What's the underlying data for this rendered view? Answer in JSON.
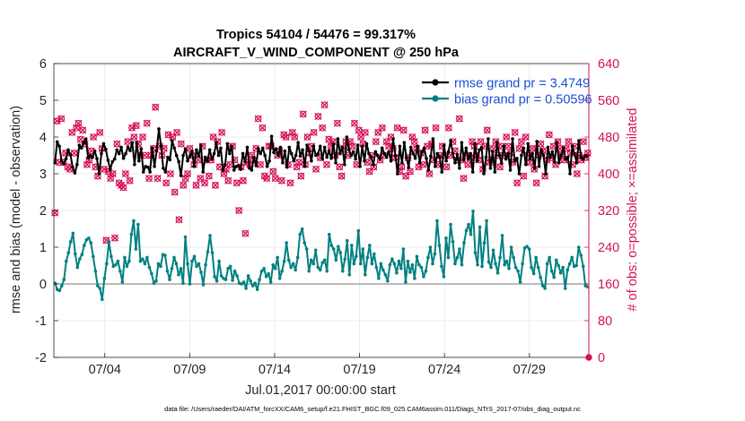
{
  "chart_data": {
    "type": "line",
    "title_line1": "Tropics 54104 / 54476 = 99.317%",
    "title_line2": "AIRCRAFT_V_WIND_COMPONENT @ 250 hPa",
    "xlabel": "Jul.01,2017 00:00:00 start",
    "ylabel_left": "rmse and bias (model - observation)",
    "ylabel_right": "# of obs: o=possible; ×=assimilated",
    "footer": "data file: /Users/raeder/DAI/ATM_forcXX/CAM6_setup/f.e21.FHIST_BGC.f09_025.CAM6assim.011/Diags_NTrS_2017-07/obs_diag_output.nc",
    "xlim": [
      1,
      32.5
    ],
    "ylim_left": [
      -2,
      6
    ],
    "ylim_right": [
      0,
      640
    ],
    "x_ticks": [
      {
        "value": 4,
        "label": "07/04"
      },
      {
        "value": 9,
        "label": "07/09"
      },
      {
        "value": 14,
        "label": "07/14"
      },
      {
        "value": 19,
        "label": "07/19"
      },
      {
        "value": 24,
        "label": "07/24"
      },
      {
        "value": 29,
        "label": "07/29"
      }
    ],
    "y_ticks_left": [
      -2,
      -1,
      0,
      1,
      2,
      3,
      4,
      5,
      6
    ],
    "y_ticks_left_labels": [
      "-2",
      "-1",
      "0",
      "1",
      "2",
      "3",
      "4",
      "5",
      "6"
    ],
    "y_ticks_right": [
      0,
      80,
      160,
      240,
      320,
      400,
      480,
      560,
      640
    ],
    "y_ticks_right_labels": [
      "0",
      "80",
      "160",
      "240",
      "320",
      "400",
      "480",
      "560",
      "640"
    ],
    "grid": true,
    "legend_position": "top-right",
    "series": [
      {
        "name": "rmse grand pr = 3.4749",
        "color": "#000000",
        "values": [
          3.3,
          3.87,
          3.75,
          3.35,
          3.28,
          3.41,
          3.65,
          3.52,
          3.18,
          3.02,
          3.25,
          3.78,
          3.7,
          3.85,
          3.95,
          3.43,
          3.5,
          3.45,
          3.62,
          3.41,
          3.0,
          3.55,
          3.82,
          3.67,
          3.37,
          3.12,
          3.33,
          3.4,
          3.65,
          3.55,
          3.72,
          3.42,
          3.55,
          3.73,
          3.63,
          3.85,
          3.25,
          3.85,
          3.35,
          3.68,
          3.05,
          3.2,
          3.18,
          3.05,
          3.7,
          3.2,
          3.62,
          4.22,
          3.75,
          3.15,
          3.05,
          3.45,
          3.38,
          3.9,
          3.7,
          3.5,
          3.33,
          2.95,
          3.5,
          3.68,
          3.35,
          3.47,
          3.62,
          3.2,
          3.65,
          3.48,
          3.78,
          3.05,
          3.45,
          3.35,
          3.65,
          3.4,
          3.55,
          3.85,
          3.5,
          3.7,
          3.1,
          3.25,
          3.82,
          3.55,
          3.75,
          3.1,
          3.2,
          3.22,
          3.12,
          3.55,
          3.33,
          3.72,
          3.15,
          3.1,
          3.45,
          3.22,
          3.68,
          3.55,
          3.7,
          3.5,
          3.2,
          3.35,
          4.02,
          3.58,
          3.68,
          3.5,
          3.72,
          3.3,
          3.62,
          3.18,
          3.72,
          3.55,
          3.35,
          3.5,
          3.85,
          3.48,
          3.65,
          3.2,
          3.78,
          3.62,
          3.35,
          3.75,
          3.5,
          3.55,
          3.75,
          3.4,
          3.72,
          3.45,
          3.62,
          3.42,
          3.8,
          3.3,
          3.95,
          3.55,
          3.72,
          3.25,
          4.0,
          3.65,
          3.5,
          3.6,
          3.4,
          3.78,
          3.2,
          3.75,
          3.35,
          3.82,
          3.55,
          3.45,
          3.25,
          3.6,
          3.5,
          3.4,
          3.7,
          3.55,
          3.45,
          3.6,
          3.35,
          3.95,
          3.5,
          3.0,
          3.75,
          3.3,
          3.85,
          3.45,
          3.18,
          3.72,
          3.55,
          3.42,
          3.75,
          3.3,
          3.6,
          3.7,
          3.42,
          3.1,
          3.48,
          3.95,
          3.2,
          3.55,
          3.45,
          3.05,
          3.78,
          3.35,
          3.6,
          3.9,
          3.55,
          3.3,
          3.52,
          3.15,
          3.85,
          3.38,
          3.7,
          3.4,
          3.55,
          3.05,
          3.82,
          3.35,
          3.65,
          3.72,
          3.0,
          3.45,
          3.95,
          3.15,
          3.6,
          3.05,
          3.85,
          3.5,
          3.3,
          3.75,
          3.4,
          3.55,
          3.1,
          3.95,
          3.35,
          3.42,
          3.0,
          3.5,
          3.7,
          3.25,
          3.82,
          3.4,
          3.55,
          3.15,
          3.88,
          3.2,
          3.65,
          3.5,
          3.0,
          3.72,
          3.45,
          3.6,
          3.32,
          3.85,
          3.3,
          3.5,
          3.7,
          3.4,
          3.45,
          3.0,
          3.75,
          3.55,
          3.3,
          3.9,
          3.45,
          3.4,
          3.5,
          3.48
        ]
      },
      {
        "name": "bias grand pr = 0.50596",
        "color": "#008080",
        "values": [
          0.02,
          -0.15,
          -0.18,
          -0.05,
          0.12,
          0.62,
          0.85,
          1.15,
          1.38,
          0.82,
          0.45,
          0.68,
          0.8,
          1.05,
          1.2,
          1.25,
          1.12,
          0.75,
          0.35,
          -0.05,
          -0.12,
          -0.42,
          0.15,
          0.55,
          1.15,
          0.75,
          0.48,
          0.52,
          0.62,
          0.35,
          0.05,
          0.72,
          0.48,
          0.62,
          1.35,
          1.72,
          0.95,
          1.62,
          0.62,
          0.68,
          0.55,
          0.72,
          0.45,
          0.28,
          0.02,
          0.08,
          0.55,
          0.48,
          0.8,
          0.78,
          0.35,
          0.12,
          0.42,
          0.72,
          0.55,
          0.25,
          0.42,
          0.02,
          1.28,
          0.55,
          0.0,
          0.62,
          0.75,
          0.48,
          0.55,
          0.32,
          -0.02,
          0.52,
          0.88,
          1.32,
          0.85,
          0.2,
          0.08,
          0.62,
          0.22,
          0.15,
          0.12,
          0.42,
          0.48,
          0.1,
          0.35,
          0.22,
          0.02,
          0.0,
          0.05,
          -0.12,
          0.22,
          0.08,
          -0.05,
          0.02,
          -0.15,
          0.12,
          0.35,
          0.42,
          0.2,
          0.28,
          0.05,
          0.52,
          0.42,
          0.72,
          0.15,
          0.35,
          0.62,
          1.12,
          0.65,
          0.45,
          0.55,
          0.38,
          0.72,
          1.35,
          1.5,
          1.12,
          0.95,
          0.35,
          0.65,
          0.55,
          0.92,
          0.45,
          0.38,
          0.58,
          0.65,
          0.35,
          1.35,
          1.05,
          0.95,
          0.65,
          1.02,
          0.85,
          0.35,
          0.68,
          1.18,
          0.25,
          1.05,
          0.55,
          0.75,
          1.45,
          0.55,
          0.95,
          0.25,
          0.72,
          1.05,
          0.55,
          0.82,
          0.45,
          0.15,
          0.55,
          0.38,
          0.25,
          0.08,
          0.52,
          0.68,
          0.55,
          0.3,
          0.62,
          0.42,
          0.95,
          0.05,
          0.62,
          0.32,
          0.52,
          0.15,
          0.75,
          0.52,
          0.45,
          0.2,
          0.35,
          0.72,
          1.0,
          0.55,
          0.82,
          1.72,
          1.05,
          0.48,
          0.2,
          1.25,
          0.72,
          1.62,
          1.15,
          0.55,
          0.72,
          0.95,
          0.52,
          1.12,
          1.45,
          1.62,
          1.35,
          1.98,
          0.85,
          0.52,
          1.55,
          0.48,
          1.12,
          1.72,
          0.6,
          0.45,
          0.92,
          0.55,
          0.3,
          0.72,
          1.32,
          0.52,
          0.62,
          0.42,
          1.0,
          0.72,
          0.45,
          0.35,
          0.05,
          0.55,
          0.98,
          1.02,
          0.95,
          0.45,
          0.28,
          0.72,
          0.45,
          0.18,
          -0.05,
          -0.12,
          0.55,
          0.72,
          0.35,
          0.18,
          0.65,
          0.5,
          0.3,
          0.45,
          -0.12,
          0.38,
          0.55,
          0.72,
          0.48,
          0.5,
          1.0,
          0.78,
          0.48,
          -0.05,
          -0.08
        ]
      }
    ],
    "obs_markers": {
      "name": "# of obs",
      "color": "#d6105a",
      "values": [
        315,
        515,
        425,
        520,
        425,
        445,
        415,
        410,
        490,
        445,
        500,
        510,
        475,
        495,
        465,
        420,
        430,
        450,
        480,
        415,
        395,
        490,
        455,
        410,
        255,
        405,
        390,
        400,
        260,
        465,
        380,
        375,
        370,
        400,
        470,
        385,
        500,
        480,
        505,
        465,
        440,
        480,
        440,
        510,
        390,
        440,
        455,
        545,
        390,
        460,
        440,
        455,
        380,
        485,
        400,
        480,
        360,
        490,
        300,
        465,
        375,
        390,
        400,
        455,
        440,
        420,
        375,
        430,
        390,
        460,
        380,
        430,
        395,
        430,
        480,
        375,
        470,
        415,
        490,
        400,
        410,
        385,
        420,
        460,
        430,
        380,
        320,
        415,
        385,
        270,
        425,
        420,
        440,
        430,
        455,
        520,
        420,
        500,
        395,
        390,
        460,
        460,
        405,
        390,
        440,
        450,
        385,
        485,
        480,
        420,
        380,
        490,
        480,
        415,
        425,
        395,
        530,
        420,
        480,
        445,
        460,
        490,
        410,
        525,
        435,
        500,
        550,
        420,
        475,
        460,
        470,
        440,
        510,
        415,
        395,
        455,
        470,
        440,
        470,
        460,
        510,
        420,
        495,
        480,
        465,
        490,
        425,
        405,
        440,
        415,
        470,
        490,
        430,
        500,
        440,
        470,
        460,
        480,
        455,
        435,
        500,
        405,
        415,
        495,
        395,
        435,
        405,
        480,
        470,
        455,
        415,
        445,
        420,
        495,
        460,
        400,
        465,
        430,
        500,
        420,
        440,
        460,
        440,
        415,
        500,
        440,
        470,
        450,
        430,
        520,
        430,
        390,
        440,
        420,
        435,
        470,
        460,
        440,
        430,
        470,
        410,
        460,
        495,
        425,
        430,
        455,
        470,
        440,
        415,
        460,
        440,
        480,
        460,
        445,
        425,
        490,
        380,
        455,
        470,
        395,
        480,
        440,
        425,
        455,
        410,
        380,
        440,
        465,
        450,
        395,
        430,
        485,
        435,
        460,
        420,
        470,
        455,
        440,
        430,
        455,
        470,
        445,
        420,
        460,
        400,
        440,
        430,
        470,
        435,
        445
      ]
    },
    "reference_line": {
      "y": 0,
      "color": "#bbbbbb"
    }
  }
}
